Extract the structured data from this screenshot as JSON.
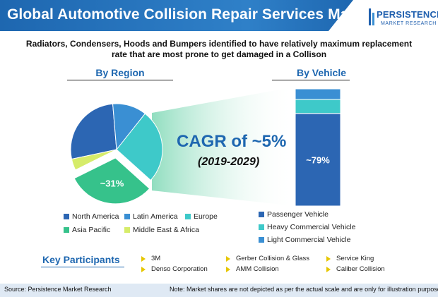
{
  "header": {
    "title": "Global Automotive Collision Repair Services Market",
    "logo_main": "PERSISTENCE",
    "logo_sub": "MARKET RESEARCH"
  },
  "subtitle_line1": "Radiators, Condensers, Hoods and Bumpers identified to have relatively maximum replacement",
  "subtitle_line2": "rate that are most prone to get damaged in a Collison",
  "cagr": {
    "text": "CAGR of ~5%",
    "period": "(2019-2029)"
  },
  "chart_data": [
    {
      "type": "pie",
      "title": "By Region",
      "categories": [
        "North America",
        "Latin America",
        "Europe",
        "Asia Pacific",
        "Middle East & Africa"
      ],
      "values": [
        27,
        12,
        26,
        31,
        4
      ],
      "colors": [
        "#2c66b3",
        "#3a8fd3",
        "#3ec9c9",
        "#36c28b",
        "#d6ec6a"
      ],
      "data_labels": {
        "Asia Pacific": "~31%"
      },
      "legend_position": "bottom"
    },
    {
      "type": "bar",
      "stacked": true,
      "title": "By Vehicle",
      "categories": [
        "Passenger Vehicle",
        "Heavy Commercial Vehicle",
        "Light Commercial Vehicle"
      ],
      "values": [
        79,
        12,
        9
      ],
      "colors": [
        "#2c66b3",
        "#3ec9c9",
        "#3a8fd3"
      ],
      "data_labels": {
        "Passenger Vehicle": "~79%"
      },
      "legend_position": "bottom"
    }
  ],
  "key_participants": {
    "title": "Key Participants",
    "columns": [
      [
        "3M",
        "Denso Corporation"
      ],
      [
        "Gerber Collision & Glass",
        "AMM Collision"
      ],
      [
        "Service King",
        "Caliber Collision"
      ]
    ]
  },
  "footer": {
    "source": "Source: Persistence Market Research",
    "note": "Note: Market shares are not depicted as per the actual scale and are only for illustration purposes"
  }
}
